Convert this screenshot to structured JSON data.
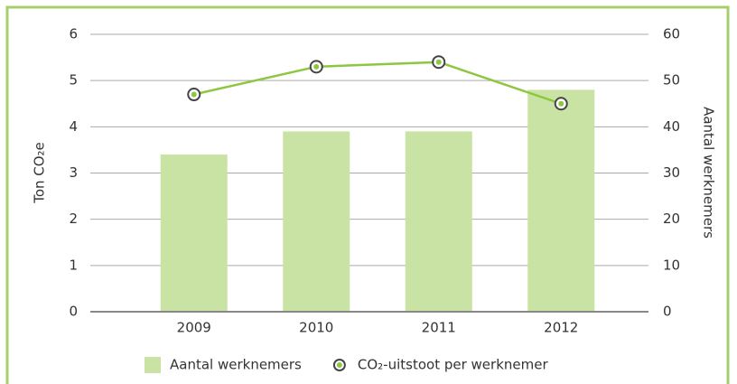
{
  "chart_data": {
    "type": "bar_line",
    "categories": [
      "2009",
      "2010",
      "2011",
      "2012"
    ],
    "ylabel": "Ton CO₂e",
    "y2label": "Aantal werknemers",
    "ylim": [
      0,
      6
    ],
    "yticks": [
      0,
      1,
      2,
      3,
      4,
      5,
      6
    ],
    "y2lim": [
      0,
      60
    ],
    "y2ticks": [
      0,
      10,
      20,
      30,
      40,
      50,
      60
    ],
    "grid": true,
    "legend": "bottom",
    "series": [
      {
        "name": "Aantal werknemers",
        "type": "bar",
        "axis": "y2",
        "color": "#c8e3a4",
        "values": [
          34,
          39,
          39,
          48
        ]
      },
      {
        "name": "CO₂-uitstoot per werknemer",
        "type": "line",
        "axis": "y",
        "color": "#8dc63f",
        "values": [
          4.7,
          5.3,
          5.4,
          4.5
        ]
      }
    ]
  }
}
